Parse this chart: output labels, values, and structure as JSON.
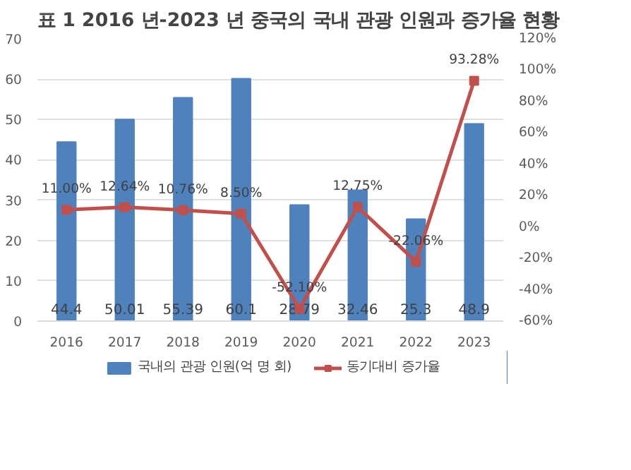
{
  "chart_data": {
    "type": "bar",
    "title": "표 1 2016 년-2023 년 중국의 국내 관광 인원과 증가율 현황",
    "categories": [
      "2016",
      "2017",
      "2018",
      "2019",
      "2020",
      "2021",
      "2022",
      "2023"
    ],
    "series": [
      {
        "name": "국내의 관광 인원(억 명 회)",
        "color": "#4f81bd",
        "values": [
          44.4,
          50.01,
          55.39,
          60.1,
          28.79,
          32.46,
          25.3,
          48.9
        ],
        "value_labels": [
          "44.4",
          "50.01",
          "55.39",
          "60.1",
          "28.79",
          "32.46",
          "25.3",
          "48.9"
        ]
      },
      {
        "name": "동기대비 증가율",
        "type": "line",
        "axis": "y2",
        "color": "#c0504d",
        "marker": "square",
        "values": [
          11.0,
          12.64,
          10.76,
          8.5,
          -52.1,
          12.75,
          -22.06,
          93.28
        ],
        "value_labels": [
          "11.00%",
          "12.64%",
          "10.76%",
          "8.50%",
          "-52.10%",
          "12.75%",
          "-22.06%",
          "93.28%"
        ]
      }
    ],
    "ylim": [
      0,
      70
    ],
    "yticks": [
      0,
      10,
      20,
      30,
      40,
      50,
      60,
      70
    ],
    "y2lim": [
      -60,
      120
    ],
    "y2ticks": [
      {
        "value": -60,
        "label": "-60%"
      },
      {
        "value": -40,
        "label": "-40%"
      },
      {
        "value": -20,
        "label": "-20%"
      },
      {
        "value": 0,
        "label": "0%"
      },
      {
        "value": 20,
        "label": "20%"
      },
      {
        "value": 40,
        "label": "40%"
      },
      {
        "value": 60,
        "label": "60%"
      },
      {
        "value": 80,
        "label": "80%"
      },
      {
        "value": 100,
        "label": "100%"
      },
      {
        "value": 120,
        "label": "120%"
      }
    ],
    "grid": "y",
    "legend": "bottom"
  }
}
